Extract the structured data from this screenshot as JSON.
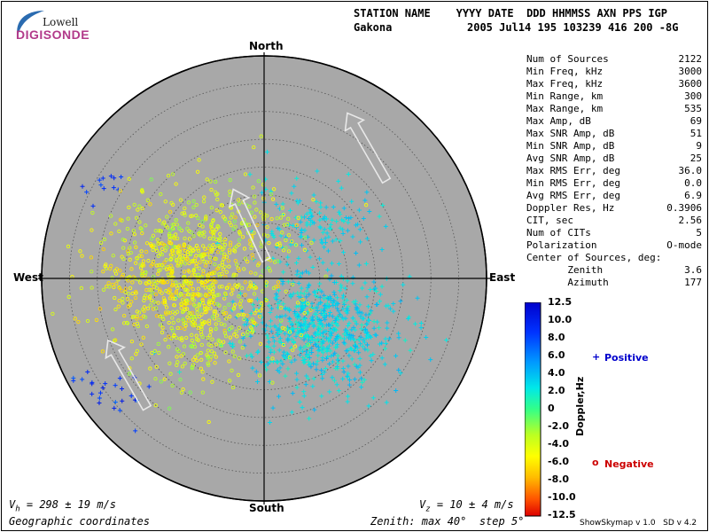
{
  "logo": {
    "top": "Lowell",
    "main": "DIGISONDE"
  },
  "header": {
    "line1": "STATION NAME    YYYY DATE  DDD HHMMSS AXN PPS IGP",
    "line2_station": "Gakona",
    "line2_values": "2005 Jul14 195 103239 416 200 -8G"
  },
  "stats": [
    {
      "label": "Num of Sources",
      "value": "2122"
    },
    {
      "label": "Min Freq, kHz",
      "value": "3000"
    },
    {
      "label": "Max Freq, kHz",
      "value": "3600"
    },
    {
      "label": "Min Range, km",
      "value": "300"
    },
    {
      "label": "Max Range, km",
      "value": "535"
    },
    {
      "label": "Max Amp, dB",
      "value": "69"
    },
    {
      "label": "Max SNR Amp, dB",
      "value": "51"
    },
    {
      "label": "Min SNR Amp, dB",
      "value": "9"
    },
    {
      "label": "Avg SNR Amp, dB",
      "value": "25"
    },
    {
      "label": "Max RMS Err, deg",
      "value": "36.0"
    },
    {
      "label": "Min RMS Err, deg",
      "value": "0.0"
    },
    {
      "label": "Avg RMS Err, deg",
      "value": "6.9"
    },
    {
      "label": "Doppler Res, Hz",
      "value": "0.3906"
    },
    {
      "label": "CIT, sec",
      "value": "2.56"
    },
    {
      "label": "Num of CITs",
      "value": "5"
    },
    {
      "label": "Polarization",
      "value": "O-mode"
    },
    {
      "label": "Center of Sources, deg:",
      "value": ""
    },
    {
      "label": "       Zenith",
      "value": "3.6"
    },
    {
      "label": "       Azimuth",
      "value": "177"
    }
  ],
  "compass": {
    "north": "North",
    "south": "South",
    "east": "East",
    "west": "West"
  },
  "footer": {
    "vh": "V",
    "vh_sub": "h",
    "vh_value": " = 298 ± 19 m/s",
    "vz": "V",
    "vz_sub": "z",
    "vz_value": " = 10 ± 4 m/s",
    "coords": "Geographic coordinates",
    "zenith": "Zenith: max 40°  step 5°",
    "version": "ShowSkymap v 1.0   SD v 4.2"
  },
  "legend": {
    "axis_label": "Doppler,Hz",
    "positive_symbol": "+",
    "positive_label": "Positive",
    "negative_symbol": "o",
    "negative_label": "Negative",
    "ticks": [
      "12.5",
      "10.0",
      "8.0",
      "6.0",
      "4.0",
      "2.0",
      "0",
      "-2.0",
      "-4.0",
      "-6.0",
      "-8.0",
      "-10.0",
      "-12.5"
    ],
    "colors": {
      "positive": "#0000cc",
      "negative": "#cc0000",
      "plot_bg": "#a8a8a8"
    }
  },
  "chart_data": {
    "type": "scatter",
    "title": "",
    "projection": "polar sky map",
    "zenith_max_deg": 40,
    "zenith_step_deg": 5,
    "center_of_sources": {
      "zenith_deg": 3.6,
      "azimuth_deg": 177
    },
    "color_scale": {
      "label": "Doppler,Hz",
      "min": -12.5,
      "max": 12.5
    },
    "series": [
      {
        "name": "Positive",
        "marker": "+",
        "clusters": [
          {
            "az_deg": 135,
            "zen_deg": 13,
            "spread_deg": 9,
            "count": 700,
            "doppler": [
              1.5,
              4.5
            ]
          },
          {
            "az_deg": 45,
            "zen_deg": 13,
            "spread_deg": 7,
            "count": 150,
            "doppler": [
              2,
              4
            ]
          },
          {
            "az_deg": 235,
            "zen_deg": 35,
            "spread_deg": 4,
            "count": 30,
            "doppler": [
              7,
              11
            ]
          },
          {
            "az_deg": 300,
            "zen_deg": 33,
            "spread_deg": 3,
            "count": 12,
            "doppler": [
              8,
              10
            ]
          }
        ]
      },
      {
        "name": "Negative",
        "marker": "o",
        "clusters": [
          {
            "az_deg": 270,
            "zen_deg": 14,
            "spread_deg": 10,
            "count": 650,
            "doppler": [
              -5,
              -1
            ]
          },
          {
            "az_deg": 315,
            "zen_deg": 13,
            "spread_deg": 9,
            "count": 220,
            "doppler": [
              -3,
              -0.5
            ]
          },
          {
            "az_deg": 225,
            "zen_deg": 15,
            "spread_deg": 9,
            "count": 220,
            "doppler": [
              -3.5,
              -0.5
            ]
          }
        ]
      }
    ],
    "arrows": [
      {
        "az_deg": 38,
        "zen_deg": 30,
        "direction_deg": 330
      },
      {
        "az_deg": 345,
        "zen_deg": 10,
        "direction_deg": 335
      },
      {
        "az_deg": 235,
        "zen_deg": 30,
        "direction_deg": 330
      }
    ]
  }
}
